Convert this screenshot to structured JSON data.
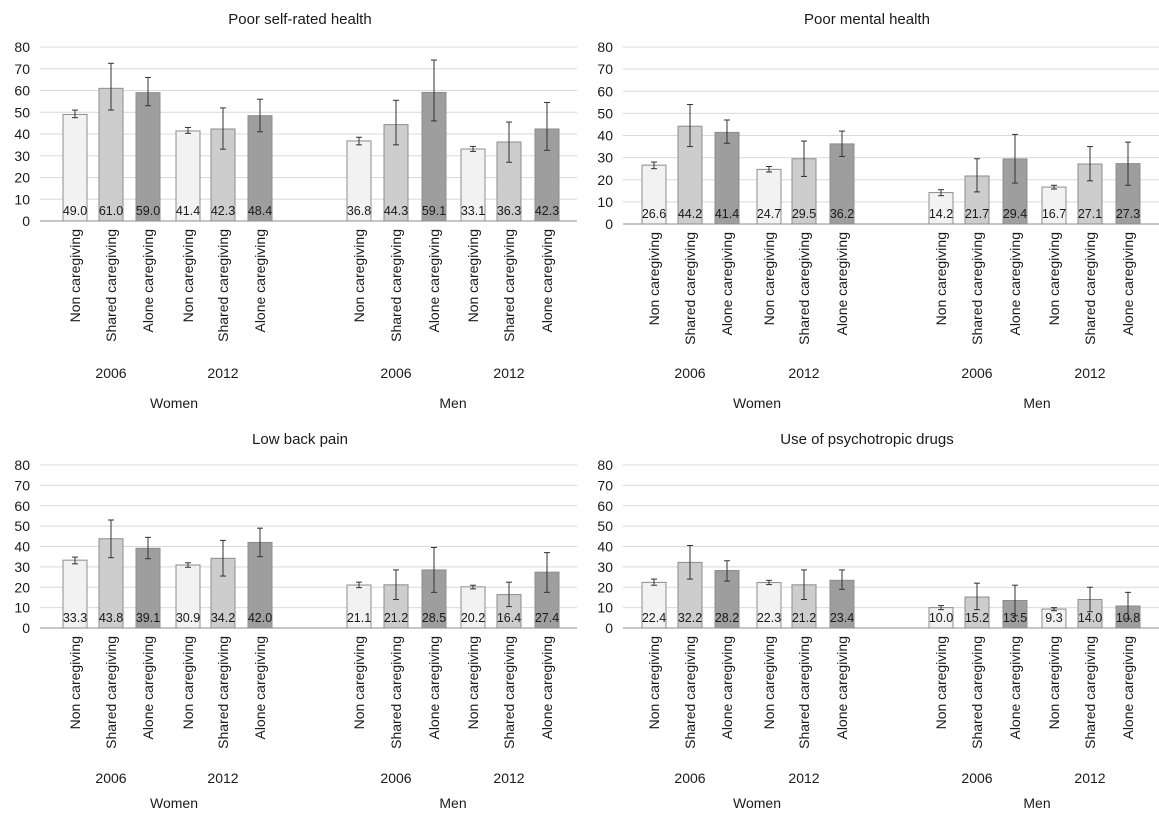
{
  "colors": {
    "non_caregiving": "#f2f2f2",
    "shared_caregiving": "#cdcdcd",
    "alone_caregiving": "#9e9e9e",
    "bar_stroke": "#8c8c8c",
    "gridline": "#d9d9d9",
    "axis": "#8c8c8c",
    "error_bar": "#333333"
  },
  "chart_data": [
    {
      "type": "bar",
      "title": "Poor self-rated health",
      "ylim": [
        0,
        80
      ],
      "yticks": [
        0,
        10,
        20,
        30,
        40,
        50,
        60,
        70,
        80
      ],
      "grid": true,
      "categories": [
        "Non caregiving",
        "Shared caregiving",
        "Alone caregiving"
      ],
      "year_labels": [
        "2006",
        "2012"
      ],
      "groups": [
        {
          "name": "Women",
          "years": [
            {
              "year": "2006",
              "values": [
                49.0,
                61.0,
                59.0
              ],
              "labels": [
                "49.0",
                "61.0",
                "59.0"
              ],
              "ci": [
                [
                  47.5,
                  51.0
                ],
                [
                  51.0,
                  72.5
                ],
                [
                  53.0,
                  66.0
                ]
              ]
            },
            {
              "year": "2012",
              "values": [
                41.4,
                42.3,
                48.4
              ],
              "labels": [
                "41.4",
                "42.3",
                "48.4"
              ],
              "ci": [
                [
                  40.3,
                  43.0
                ],
                [
                  33.0,
                  52.0
                ],
                [
                  41.0,
                  56.0
                ]
              ]
            }
          ]
        },
        {
          "name": "Men",
          "years": [
            {
              "year": "2006",
              "values": [
                36.8,
                44.3,
                59.1
              ],
              "labels": [
                "36.8",
                "44.3",
                "59.1"
              ],
              "ci": [
                [
                  35.0,
                  38.5
                ],
                [
                  35.0,
                  55.5
                ],
                [
                  46.0,
                  74.0
                ]
              ]
            },
            {
              "year": "2012",
              "values": [
                33.1,
                36.3,
                42.3
              ],
              "labels": [
                "33.1",
                "36.3",
                "42.3"
              ],
              "ci": [
                [
                  32.0,
                  34.3
                ],
                [
                  27.0,
                  45.5
                ],
                [
                  32.5,
                  54.5
                ]
              ]
            }
          ]
        }
      ]
    },
    {
      "type": "bar",
      "title": "Poor mental health",
      "ylim": [
        0,
        80
      ],
      "yticks": [
        0,
        10,
        20,
        30,
        40,
        50,
        60,
        70,
        80
      ],
      "grid": true,
      "categories": [
        "Non caregiving",
        "Shared caregiving",
        "Alone caregiving"
      ],
      "year_labels": [
        "2006",
        "2012"
      ],
      "groups": [
        {
          "name": "Women",
          "years": [
            {
              "year": "2006",
              "values": [
                26.6,
                44.2,
                41.4
              ],
              "labels": [
                "26.6",
                "44.2",
                "41.4"
              ],
              "ci": [
                [
                  25.0,
                  28.0
                ],
                [
                  35.0,
                  54.0
                ],
                [
                  36.5,
                  47.0
                ]
              ]
            },
            {
              "year": "2012",
              "values": [
                24.7,
                29.5,
                36.2
              ],
              "labels": [
                "24.7",
                "29.5",
                "36.2"
              ],
              "ci": [
                [
                  23.5,
                  26.0
                ],
                [
                  21.5,
                  37.5
                ],
                [
                  30.5,
                  42.0
                ]
              ]
            }
          ]
        },
        {
          "name": "Men",
          "years": [
            {
              "year": "2006",
              "values": [
                14.2,
                21.7,
                29.4
              ],
              "labels": [
                "14.2",
                "21.7",
                "29.4"
              ],
              "ci": [
                [
                  12.8,
                  15.5
                ],
                [
                  14.5,
                  29.5
                ],
                [
                  18.5,
                  40.5
                ]
              ]
            },
            {
              "year": "2012",
              "values": [
                16.7,
                27.1,
                27.3
              ],
              "labels": [
                "16.7",
                "27.1",
                "27.3"
              ],
              "ci": [
                [
                  15.8,
                  17.5
                ],
                [
                  19.5,
                  35.0
                ],
                [
                  17.5,
                  37.0
                ]
              ]
            }
          ]
        }
      ]
    },
    {
      "type": "bar",
      "title": "Low back pain",
      "ylim": [
        0,
        80
      ],
      "yticks": [
        0,
        10,
        20,
        30,
        40,
        50,
        60,
        70,
        80
      ],
      "grid": true,
      "categories": [
        "Non caregiving",
        "Shared caregiving",
        "Alone caregiving"
      ],
      "year_labels": [
        "2006",
        "2012"
      ],
      "groups": [
        {
          "name": "Women",
          "years": [
            {
              "year": "2006",
              "values": [
                33.3,
                43.8,
                39.1
              ],
              "labels": [
                "33.3",
                "43.8",
                "39.1"
              ],
              "ci": [
                [
                  31.5,
                  34.8
                ],
                [
                  34.5,
                  53.0
                ],
                [
                  34.0,
                  44.5
                ]
              ]
            },
            {
              "year": "2012",
              "values": [
                30.9,
                34.2,
                42.0
              ],
              "labels": [
                "30.9",
                "34.2",
                "42.0"
              ],
              "ci": [
                [
                  29.8,
                  32.0
                ],
                [
                  25.5,
                  43.0
                ],
                [
                  35.0,
                  49.0
                ]
              ]
            }
          ]
        },
        {
          "name": "Men",
          "years": [
            {
              "year": "2006",
              "values": [
                21.1,
                21.2,
                28.5
              ],
              "labels": [
                "21.1",
                "21.2",
                "28.5"
              ],
              "ci": [
                [
                  19.8,
                  22.5
                ],
                [
                  14.0,
                  28.5
                ],
                [
                  17.5,
                  39.5
                ]
              ]
            },
            {
              "year": "2012",
              "values": [
                20.2,
                16.4,
                27.4
              ],
              "labels": [
                "20.2",
                "16.4",
                "27.4"
              ],
              "ci": [
                [
                  19.2,
                  21.0
                ],
                [
                  10.5,
                  22.5
                ],
                [
                  17.5,
                  37.0
                ]
              ]
            }
          ]
        }
      ]
    },
    {
      "type": "bar",
      "title": "Use of psychotropic drugs",
      "ylim": [
        0,
        80
      ],
      "yticks": [
        0,
        10,
        20,
        30,
        40,
        50,
        60,
        70,
        80
      ],
      "grid": true,
      "categories": [
        "Non caregiving",
        "Shared caregiving",
        "Alone caregiving"
      ],
      "year_labels": [
        "2006",
        "2012"
      ],
      "groups": [
        {
          "name": "Women",
          "years": [
            {
              "year": "2006",
              "values": [
                22.4,
                32.2,
                28.2
              ],
              "labels": [
                "22.4",
                "32.2",
                "28.2"
              ],
              "ci": [
                [
                  21.0,
                  24.0
                ],
                [
                  24.0,
                  40.5
                ],
                [
                  23.0,
                  33.0
                ]
              ]
            },
            {
              "year": "2012",
              "values": [
                22.3,
                21.2,
                23.4
              ],
              "labels": [
                "22.3",
                "21.2",
                "23.4"
              ],
              "ci": [
                [
                  21.3,
                  23.4
                ],
                [
                  14.0,
                  28.5
                ],
                [
                  19.0,
                  28.5
                ]
              ]
            }
          ]
        },
        {
          "name": "Men",
          "years": [
            {
              "year": "2006",
              "values": [
                10.0,
                15.2,
                13.5
              ],
              "labels": [
                "10.0",
                "15.2",
                "13.5"
              ],
              "ci": [
                [
                  9.0,
                  11.0
                ],
                [
                  9.0,
                  22.0
                ],
                [
                  6.0,
                  21.0
                ]
              ]
            },
            {
              "year": "2012",
              "values": [
                9.3,
                14.0,
                10.8
              ],
              "labels": [
                "9.3",
                "14.0",
                "10.8"
              ],
              "ci": [
                [
                  8.5,
                  10.0
                ],
                [
                  8.0,
                  20.0
                ],
                [
                  4.5,
                  17.5
                ]
              ]
            }
          ]
        }
      ]
    }
  ]
}
